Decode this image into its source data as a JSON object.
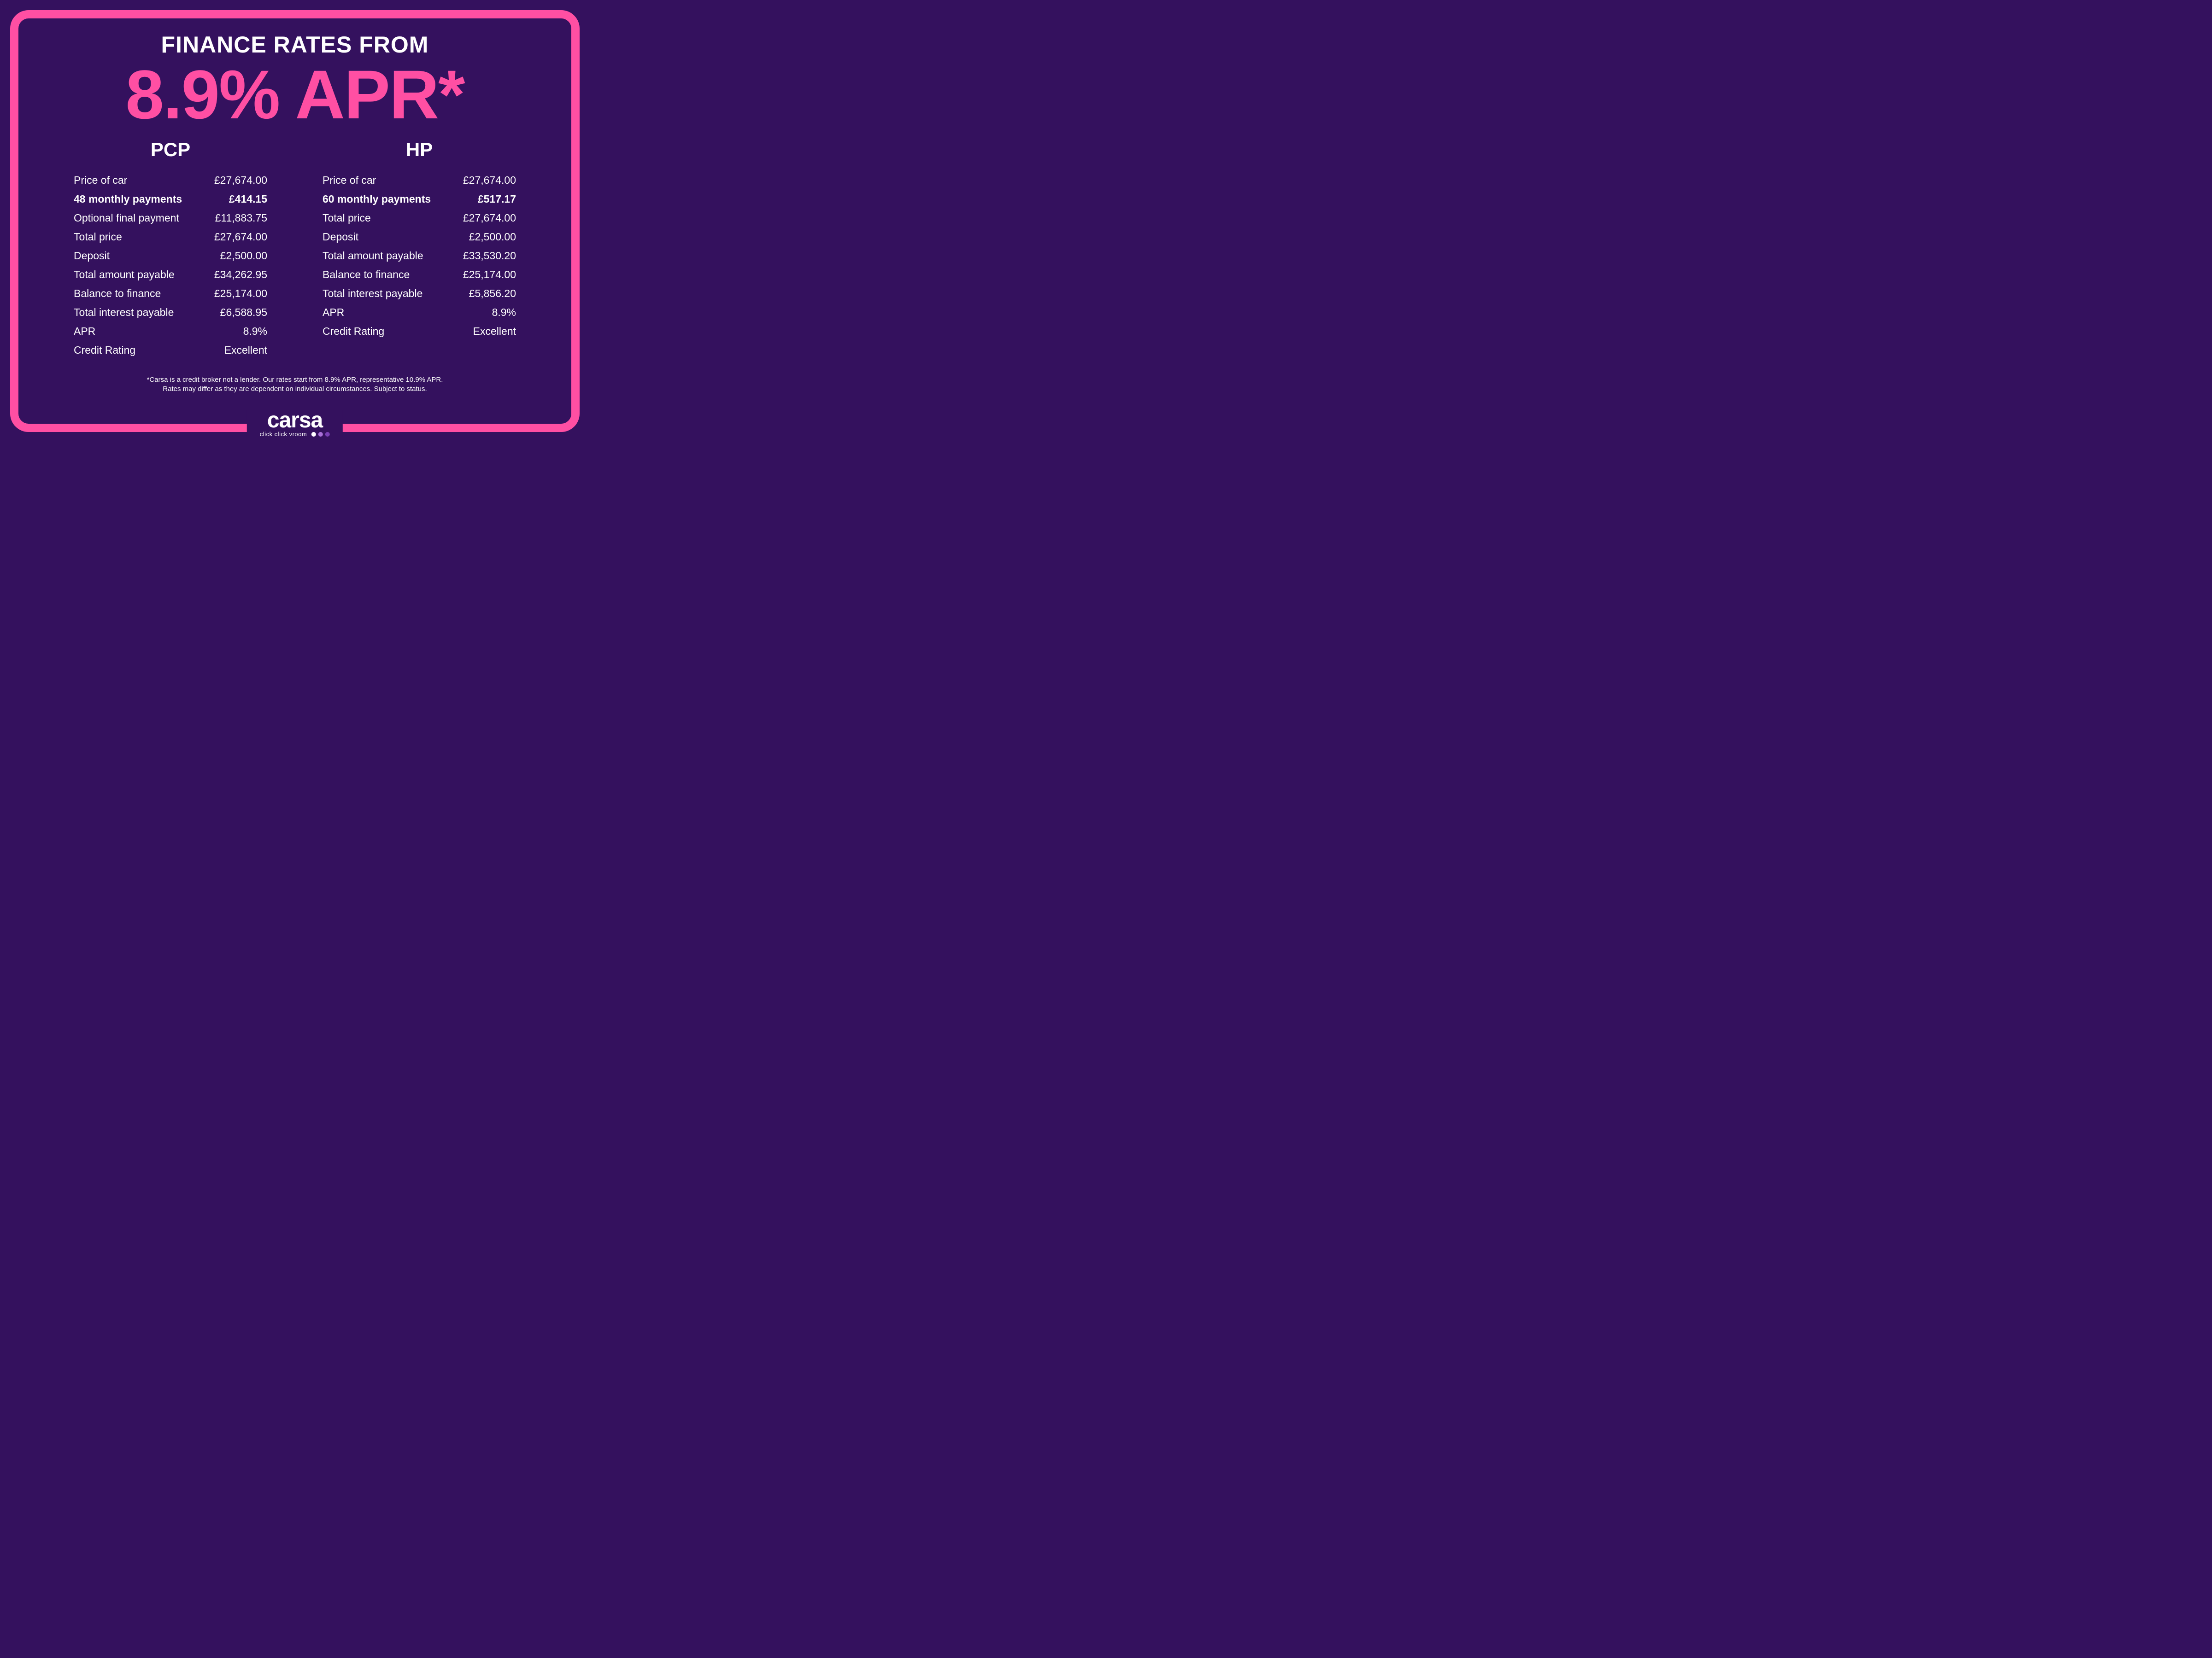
{
  "colors": {
    "background": "#34115e",
    "accent": "#ff4fa3",
    "text": "#ffffff",
    "dot1": "#ffffff",
    "dot2": "#a970d8",
    "dot3": "#7a3fb5"
  },
  "header": {
    "title": "FINANCE RATES FROM",
    "apr_line": "8.9% APR*"
  },
  "columns": [
    {
      "title": "PCP",
      "rows": [
        {
          "label": "Price of car",
          "value": "£27,674.00",
          "bold": false
        },
        {
          "label": "48 monthly payments",
          "value": "£414.15",
          "bold": true
        },
        {
          "label": "Optional final payment",
          "value": "£11,883.75",
          "bold": false
        },
        {
          "label": "Total price",
          "value": "£27,674.00",
          "bold": false
        },
        {
          "label": "Deposit",
          "value": "£2,500.00",
          "bold": false
        },
        {
          "label": "Total amount payable",
          "value": "£34,262.95",
          "bold": false
        },
        {
          "label": "Balance to finance",
          "value": "£25,174.00",
          "bold": false
        },
        {
          "label": "Total interest payable",
          "value": "£6,588.95",
          "bold": false
        },
        {
          "label": "APR",
          "value": "8.9%",
          "bold": false
        },
        {
          "label": "Credit Rating",
          "value": "Excellent",
          "bold": false
        }
      ]
    },
    {
      "title": "HP",
      "rows": [
        {
          "label": "Price of car",
          "value": "£27,674.00",
          "bold": false
        },
        {
          "label": "60 monthly payments",
          "value": "£517.17",
          "bold": true
        },
        {
          "label": "Total price",
          "value": "£27,674.00",
          "bold": false
        },
        {
          "label": "Deposit",
          "value": "£2,500.00",
          "bold": false
        },
        {
          "label": "Total amount payable",
          "value": "£33,530.20",
          "bold": false
        },
        {
          "label": "Balance to finance",
          "value": "£25,174.00",
          "bold": false
        },
        {
          "label": "Total interest payable",
          "value": "£5,856.20",
          "bold": false
        },
        {
          "label": "APR",
          "value": "8.9%",
          "bold": false
        },
        {
          "label": "Credit Rating",
          "value": "Excellent",
          "bold": false
        }
      ]
    }
  ],
  "disclaimer": {
    "line1": "*Carsa is a credit broker not a lender. Our rates start from 8.9% APR, representative 10.9% APR.",
    "line2": "Rates may differ as they are dependent on individual circumstances. Subject to status."
  },
  "logo": {
    "name": "carsa",
    "tagline": "click click vroom"
  }
}
